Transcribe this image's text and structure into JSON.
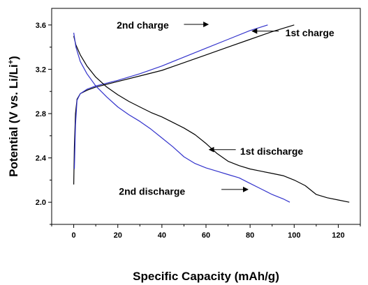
{
  "chart_data": {
    "type": "line",
    "xlabel": "Specific Capacity (mAh/g)",
    "ylabel_main": "Potential (V vs. Li/Li",
    "ylabel_sup": "+",
    "ylabel_end": ")",
    "xlim": [
      -10,
      130
    ],
    "ylim": [
      1.8,
      3.75
    ],
    "xticks": [
      0,
      20,
      40,
      60,
      80,
      100,
      120
    ],
    "yticks": [
      2.0,
      2.4,
      2.8,
      3.2,
      3.6
    ],
    "xtick_labels": [
      "0",
      "20",
      "40",
      "60",
      "80",
      "100",
      "120"
    ],
    "ytick_labels": [
      "2.0",
      "2.4",
      "2.8",
      "3.2",
      "3.6"
    ],
    "grid": false,
    "series": [
      {
        "key": "first_charge",
        "color": "#000000",
        "points": [
          [
            0,
            2.16
          ],
          [
            0.3,
            2.5
          ],
          [
            0.8,
            2.8
          ],
          [
            1.5,
            2.93
          ],
          [
            3,
            2.98
          ],
          [
            6,
            3.01
          ],
          [
            10,
            3.04
          ],
          [
            20,
            3.09
          ],
          [
            30,
            3.14
          ],
          [
            40,
            3.19
          ],
          [
            50,
            3.26
          ],
          [
            60,
            3.33
          ],
          [
            70,
            3.4
          ],
          [
            80,
            3.47
          ],
          [
            90,
            3.54
          ],
          [
            100,
            3.6
          ]
        ]
      },
      {
        "key": "second_charge",
        "color": "#3333cc",
        "points": [
          [
            0.3,
            2.3
          ],
          [
            0.8,
            2.7
          ],
          [
            1.5,
            2.92
          ],
          [
            3,
            2.98
          ],
          [
            6,
            3.02
          ],
          [
            10,
            3.05
          ],
          [
            20,
            3.1
          ],
          [
            30,
            3.16
          ],
          [
            40,
            3.23
          ],
          [
            50,
            3.31
          ],
          [
            60,
            3.39
          ],
          [
            70,
            3.47
          ],
          [
            80,
            3.55
          ],
          [
            88,
            3.6
          ]
        ]
      },
      {
        "key": "first_discharge",
        "color": "#000000",
        "points": [
          [
            0,
            3.5
          ],
          [
            1,
            3.42
          ],
          [
            3,
            3.33
          ],
          [
            6,
            3.23
          ],
          [
            10,
            3.13
          ],
          [
            15,
            3.04
          ],
          [
            20,
            2.97
          ],
          [
            25,
            2.91
          ],
          [
            30,
            2.86
          ],
          [
            35,
            2.81
          ],
          [
            40,
            2.77
          ],
          [
            45,
            2.72
          ],
          [
            50,
            2.67
          ],
          [
            55,
            2.61
          ],
          [
            60,
            2.53
          ],
          [
            65,
            2.44
          ],
          [
            70,
            2.37
          ],
          [
            75,
            2.33
          ],
          [
            80,
            2.3
          ],
          [
            85,
            2.28
          ],
          [
            90,
            2.26
          ],
          [
            95,
            2.24
          ],
          [
            100,
            2.2
          ],
          [
            105,
            2.15
          ],
          [
            110,
            2.07
          ],
          [
            115,
            2.04
          ],
          [
            120,
            2.02
          ],
          [
            125,
            2.0
          ]
        ]
      },
      {
        "key": "second_discharge",
        "color": "#3333cc",
        "points": [
          [
            0,
            3.53
          ],
          [
            1,
            3.4
          ],
          [
            3,
            3.27
          ],
          [
            6,
            3.16
          ],
          [
            10,
            3.05
          ],
          [
            15,
            2.95
          ],
          [
            20,
            2.86
          ],
          [
            25,
            2.79
          ],
          [
            30,
            2.73
          ],
          [
            35,
            2.66
          ],
          [
            40,
            2.58
          ],
          [
            45,
            2.5
          ],
          [
            50,
            2.41
          ],
          [
            55,
            2.35
          ],
          [
            60,
            2.31
          ],
          [
            65,
            2.28
          ],
          [
            70,
            2.25
          ],
          [
            75,
            2.22
          ],
          [
            80,
            2.17
          ],
          [
            85,
            2.12
          ],
          [
            90,
            2.07
          ],
          [
            95,
            2.03
          ],
          [
            98,
            2.0
          ]
        ]
      }
    ],
    "annotations": [
      {
        "key": "ann_2nd_charge",
        "text": "2nd charge",
        "text_at": [
          19.5,
          3.6
        ],
        "arrow_from": [
          50,
          3.605
        ],
        "arrow_to": [
          61,
          3.605
        ]
      },
      {
        "key": "ann_1st_charge",
        "text": "1st charge",
        "text_at": [
          96,
          3.53
        ],
        "arrow_from": [
          93,
          3.545
        ],
        "arrow_to": [
          81,
          3.545
        ]
      },
      {
        "key": "ann_1st_discharge",
        "text": "1st discharge",
        "text_at": [
          75.5,
          2.46
        ],
        "arrow_from": [
          73.5,
          2.475
        ],
        "arrow_to": [
          61.5,
          2.475
        ]
      },
      {
        "key": "ann_2nd_discharge",
        "text": "2nd discharge",
        "text_at": [
          20.5,
          2.1
        ],
        "arrow_from": [
          67,
          2.115
        ],
        "arrow_to": [
          79,
          2.115
        ]
      }
    ]
  }
}
